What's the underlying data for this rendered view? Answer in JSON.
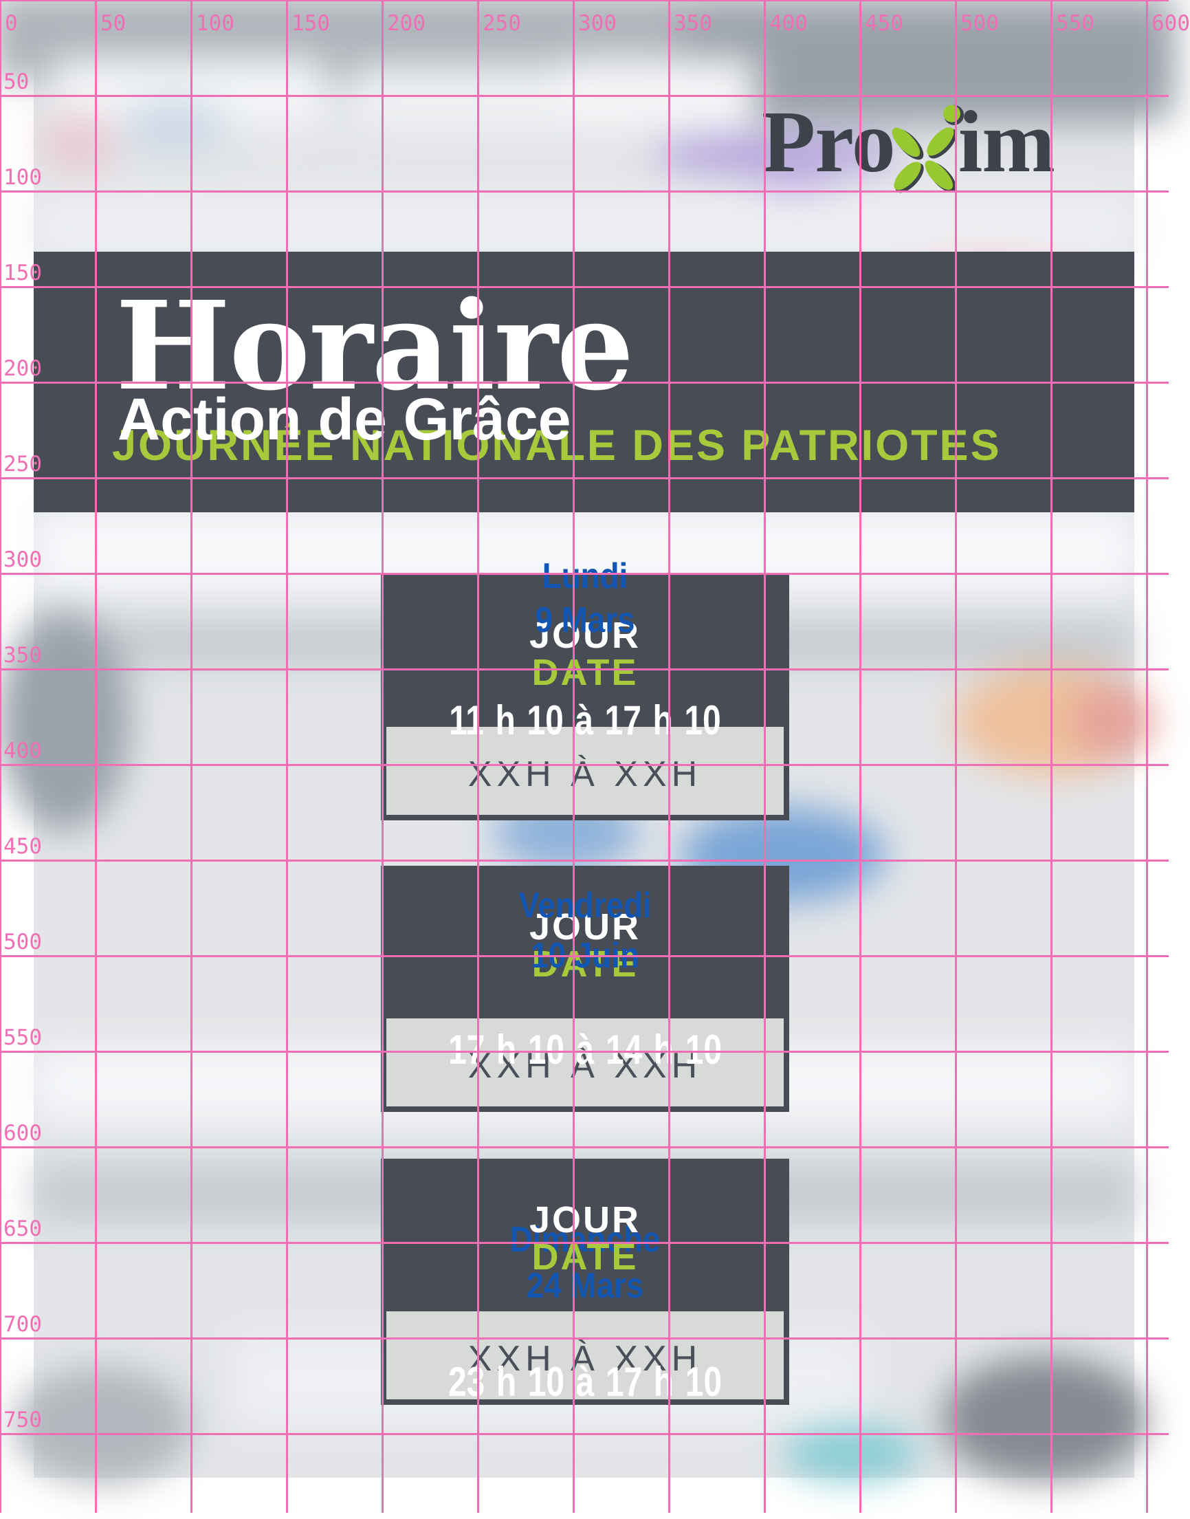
{
  "logo": {
    "pro": "Pro",
    "im": "im"
  },
  "banner": {
    "title": "Horaire",
    "subtitle": "Action de Grâce",
    "caption": "JOURNÉE NATIONALE DES PATRIOTES"
  },
  "card_template": {
    "day_label": "JOUR",
    "date_label": "DATE",
    "time_placeholder": "XXH À XXH"
  },
  "cards": [
    {
      "day": "Lundi",
      "date": "9 Mars",
      "time": "11 h 10 à 17 h 10"
    },
    {
      "day": "Vendredi",
      "date": "10 Juin",
      "time": "17 h 10 à 14 h 10"
    },
    {
      "day": "Dimanche",
      "date": "24 Mars",
      "time": "23 h 10 à 17 h 10"
    }
  ],
  "grid": {
    "x_labels": [
      "0",
      "50",
      "100",
      "150",
      "200",
      "250",
      "300",
      "350",
      "400",
      "450",
      "500",
      "550",
      "600"
    ],
    "y_labels": [
      "50",
      "100",
      "150",
      "200",
      "250",
      "300",
      "350",
      "400",
      "450",
      "500",
      "550",
      "600",
      "650",
      "700",
      "750"
    ]
  },
  "colors": {
    "pink": "#f06fb4",
    "slate": "#474c55",
    "green": "#a6ca3c",
    "blue": "#1356b1",
    "logo_green": "#97c831",
    "logo_text": "#3e434b",
    "body_gray": "#d8dad7"
  }
}
